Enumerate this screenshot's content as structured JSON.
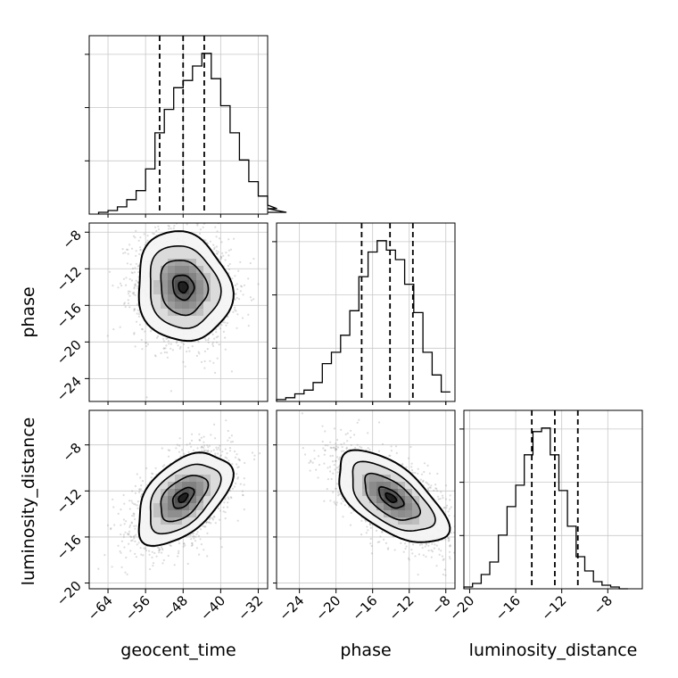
{
  "chart_data": {
    "type": "corner",
    "parameters": [
      "geocent_time",
      "phase",
      "luminosity_distance"
    ],
    "grid": true,
    "quantile_lines": "dashed",
    "contour_levels": 4,
    "ranges": {
      "geocent_time": [
        -68,
        -30
      ],
      "phase": [
        -26.5,
        -7
      ],
      "luminosity_distance": [
        -20.5,
        -5
      ]
    },
    "ticks": {
      "geocent_time": [
        -64,
        -56,
        -48,
        -40,
        -32
      ],
      "phase_x": [
        -24,
        -20,
        -16,
        -12,
        -8
      ],
      "phase_y": [
        -24,
        -20,
        -16,
        -12,
        -8
      ],
      "luminosity_distance_x": [
        -20,
        -16,
        -12,
        -8
      ],
      "luminosity_distance_y": [
        -20,
        -16,
        -12,
        -8
      ]
    },
    "tick_labels": {
      "geocent_time": [
        "−64",
        "−56",
        "−48",
        "−40",
        "−32"
      ],
      "phase_x": [
        "−24",
        "−20",
        "−16",
        "−12",
        "−8"
      ],
      "phase_y": [
        "−24",
        "−20",
        "−16",
        "−12",
        "−8"
      ],
      "luminosity_distance_x": [
        "−20",
        "−16",
        "−12",
        "−8"
      ],
      "luminosity_distance_y": [
        "−20",
        "−16",
        "−12",
        "−8"
      ]
    },
    "marginals": {
      "geocent_time": {
        "bin_start": -66,
        "bin_width": 2,
        "counts": [
          1,
          2,
          4,
          8,
          13,
          25,
          45,
          58,
          70,
          74,
          82,
          89,
          75,
          60,
          45,
          30,
          18,
          10,
          5,
          3,
          1
        ],
        "quantiles": [
          -53.0,
          -48.0,
          -43.5
        ]
      },
      "phase": {
        "bin_start": -26.5,
        "bin_width": 1,
        "counts": [
          1,
          2,
          4,
          6,
          10,
          20,
          26,
          35,
          48,
          66,
          79,
          85,
          80,
          75,
          62,
          47,
          26,
          14,
          5
        ],
        "quantiles": [
          -17.2,
          -14.1,
          -11.6
        ]
      },
      "luminosity_distance": {
        "bin_start": -20.5,
        "bin_width": 0.75,
        "counts": [
          1,
          3,
          8,
          15,
          30,
          46,
          58,
          75,
          88,
          90,
          75,
          55,
          35,
          18,
          10,
          4,
          2,
          1,
          0
        ],
        "quantiles": [
          -14.6,
          -12.6,
          -10.6
        ]
      }
    },
    "joint": {
      "phase_vs_geocent_time": {
        "mean": [
          -48,
          -14
        ],
        "sigma": [
          5,
          3
        ],
        "rho": -0.1
      },
      "luminosity_distance_vs_geocent_time": {
        "mean": [
          -48,
          -12.6
        ],
        "sigma": [
          5,
          2
        ],
        "rho": 0.5
      },
      "luminosity_distance_vs_phase": {
        "mean": [
          -14,
          -12.6
        ],
        "sigma": [
          3,
          2
        ],
        "rho": -0.6
      }
    }
  }
}
